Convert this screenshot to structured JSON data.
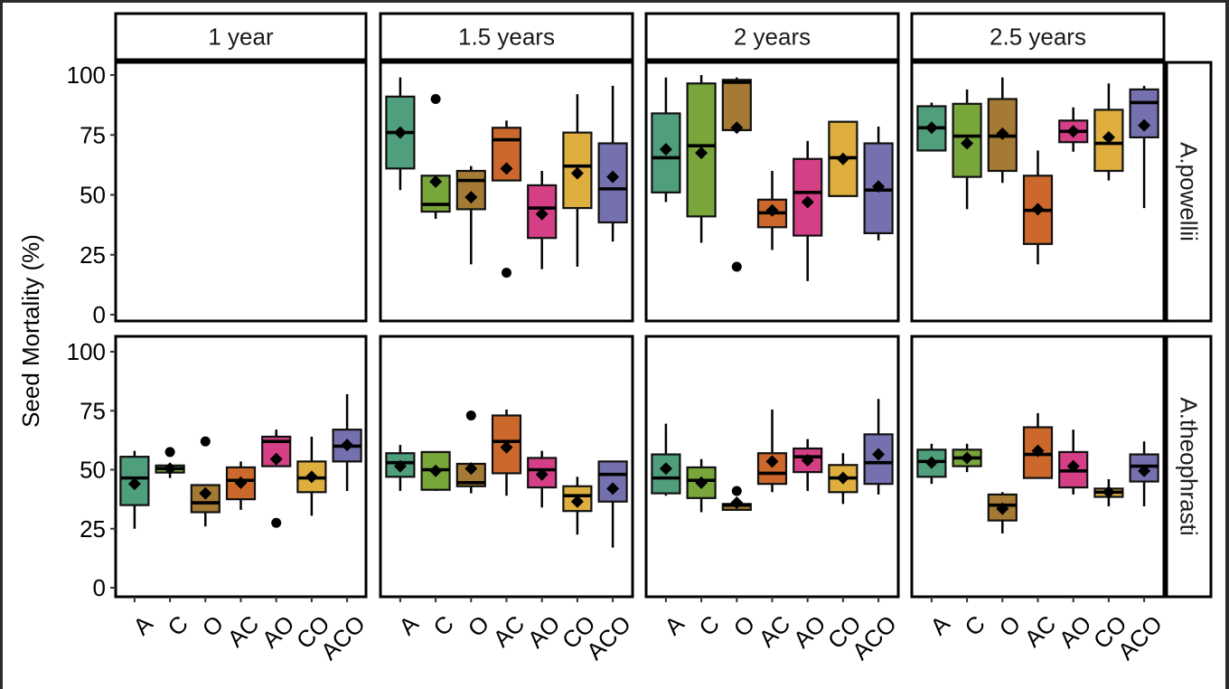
{
  "chart_data": {
    "type": "boxplot",
    "title": "",
    "ylabel": "Seed Mortality (%)",
    "xlabel": "",
    "ylim": [
      0,
      100
    ],
    "yticks": [
      0,
      25,
      50,
      75,
      100
    ],
    "grid": false,
    "legend": "none",
    "categories": [
      "A",
      "C",
      "O",
      "AC",
      "AO",
      "CO",
      "ACO"
    ],
    "colors": {
      "A": "#4f9e7c",
      "C": "#78a63a",
      "O": "#a47a34",
      "AC": "#cc682b",
      "AO": "#d53f86",
      "CO": "#deae3e",
      "ACO": "#7571af"
    },
    "columns": [
      "1 year",
      "1.5 years",
      "2 years",
      "2.5 years"
    ],
    "rows": [
      "A.powellii",
      "A.theophrasti"
    ],
    "panels": [
      {
        "row": "A.powellii",
        "column": "1 year",
        "boxes": []
      },
      {
        "row": "A.powellii",
        "column": "1.5 years",
        "boxes": [
          {
            "cat": "A",
            "lo": 52,
            "q1": 61,
            "med": 76,
            "q3": 91,
            "hi": 99,
            "mean": 76,
            "outliers": []
          },
          {
            "cat": "C",
            "lo": 40,
            "q1": 43,
            "med": 46,
            "q3": 58,
            "hi": 58,
            "mean": 55.5,
            "outliers": [
              90
            ]
          },
          {
            "cat": "O",
            "lo": 21,
            "q1": 44,
            "med": 56,
            "q3": 60,
            "hi": 62,
            "mean": 49,
            "outliers": []
          },
          {
            "cat": "AC",
            "lo": 56,
            "q1": 56,
            "med": 73,
            "q3": 78,
            "hi": 81,
            "mean": 61,
            "outliers": [
              17.5
            ]
          },
          {
            "cat": "AO",
            "lo": 19,
            "q1": 32,
            "med": 44.5,
            "q3": 54,
            "hi": 60,
            "mean": 42,
            "outliers": []
          },
          {
            "cat": "CO",
            "lo": 20,
            "q1": 44.5,
            "med": 62,
            "q3": 76,
            "hi": 92,
            "mean": 59,
            "outliers": []
          },
          {
            "cat": "ACO",
            "lo": 30.5,
            "q1": 38.5,
            "med": 52.5,
            "q3": 71.5,
            "hi": 95.5,
            "mean": 57.5,
            "outliers": []
          }
        ]
      },
      {
        "row": "A.powellii",
        "column": "2 years",
        "boxes": [
          {
            "cat": "A",
            "lo": 47,
            "q1": 51,
            "med": 65.5,
            "q3": 84,
            "hi": 99,
            "mean": 69,
            "outliers": []
          },
          {
            "cat": "C",
            "lo": 30,
            "q1": 41,
            "med": 70.5,
            "q3": 96.5,
            "hi": 100,
            "mean": 67.5,
            "outliers": []
          },
          {
            "cat": "O",
            "lo": 77,
            "q1": 77,
            "med": 97,
            "q3": 98,
            "hi": 99,
            "mean": 78,
            "outliers": [
              20
            ]
          },
          {
            "cat": "AC",
            "lo": 27,
            "q1": 36.5,
            "med": 42.5,
            "q3": 48,
            "hi": 60,
            "mean": 43.5,
            "outliers": []
          },
          {
            "cat": "AO",
            "lo": 14,
            "q1": 33,
            "med": 51,
            "q3": 65,
            "hi": 72.5,
            "mean": 47,
            "outliers": []
          },
          {
            "cat": "CO",
            "lo": 49.5,
            "q1": 49.5,
            "med": 65.5,
            "q3": 80.5,
            "hi": 80.5,
            "mean": 65,
            "outliers": []
          },
          {
            "cat": "ACO",
            "lo": 31,
            "q1": 34,
            "med": 52,
            "q3": 71.5,
            "hi": 78.5,
            "mean": 53.5,
            "outliers": []
          }
        ]
      },
      {
        "row": "A.powellii",
        "column": "2.5 years",
        "boxes": [
          {
            "cat": "A",
            "lo": 68.5,
            "q1": 68.5,
            "med": 78,
            "q3": 87,
            "hi": 88.5,
            "mean": 78,
            "outliers": []
          },
          {
            "cat": "C",
            "lo": 44,
            "q1": 57.5,
            "med": 74.5,
            "q3": 88,
            "hi": 94,
            "mean": 71.5,
            "outliers": []
          },
          {
            "cat": "O",
            "lo": 55,
            "q1": 60,
            "med": 74.5,
            "q3": 90,
            "hi": 99,
            "mean": 75.5,
            "outliers": []
          },
          {
            "cat": "AC",
            "lo": 21,
            "q1": 29.5,
            "med": 43.5,
            "q3": 58,
            "hi": 68.5,
            "mean": 44,
            "outliers": []
          },
          {
            "cat": "AO",
            "lo": 68,
            "q1": 72,
            "med": 76.5,
            "q3": 81,
            "hi": 86.5,
            "mean": 76.5,
            "outliers": []
          },
          {
            "cat": "CO",
            "lo": 56,
            "q1": 60,
            "med": 71.5,
            "q3": 85.5,
            "hi": 96.5,
            "mean": 74,
            "outliers": []
          },
          {
            "cat": "ACO",
            "lo": 44.5,
            "q1": 74,
            "med": 88.5,
            "q3": 94,
            "hi": 95.5,
            "mean": 79,
            "outliers": []
          }
        ]
      },
      {
        "row": "A.theophrasti",
        "column": "1 year",
        "boxes": [
          {
            "cat": "A",
            "lo": 25,
            "q1": 35,
            "med": 46.5,
            "q3": 55.5,
            "hi": 58,
            "mean": 44,
            "outliers": []
          },
          {
            "cat": "C",
            "lo": 46.5,
            "q1": 48.8,
            "med": 50.5,
            "q3": 51.8,
            "hi": 52.5,
            "mean": 50.5,
            "outliers": [
              57.5
            ]
          },
          {
            "cat": "O",
            "lo": 26,
            "q1": 32,
            "med": 36,
            "q3": 43.5,
            "hi": 43.5,
            "mean": 40,
            "outliers": [
              62
            ]
          },
          {
            "cat": "AC",
            "lo": 33,
            "q1": 37.5,
            "med": 45.5,
            "q3": 51,
            "hi": 53.5,
            "mean": 44.5,
            "outliers": []
          },
          {
            "cat": "AO",
            "lo": 51.5,
            "q1": 51.5,
            "med": 62,
            "q3": 64,
            "hi": 67,
            "mean": 54.5,
            "outliers": [
              27.5
            ]
          },
          {
            "cat": "CO",
            "lo": 30.5,
            "q1": 40.5,
            "med": 46.5,
            "q3": 53.5,
            "hi": 64,
            "mean": 47,
            "outliers": []
          },
          {
            "cat": "ACO",
            "lo": 41,
            "q1": 53.5,
            "med": 60,
            "q3": 67,
            "hi": 82,
            "mean": 60.5,
            "outliers": []
          }
        ]
      },
      {
        "row": "A.theophrasti",
        "column": "1.5 years",
        "boxes": [
          {
            "cat": "A",
            "lo": 41,
            "q1": 47,
            "med": 53,
            "q3": 57,
            "hi": 60.5,
            "mean": 51.5,
            "outliers": []
          },
          {
            "cat": "C",
            "lo": 41,
            "q1": 41.5,
            "med": 50,
            "q3": 57.5,
            "hi": 57.5,
            "mean": 49.5,
            "outliers": []
          },
          {
            "cat": "O",
            "lo": 40,
            "q1": 43,
            "med": 44.5,
            "q3": 52.5,
            "hi": 53,
            "mean": 50.5,
            "outliers": [
              73
            ]
          },
          {
            "cat": "AC",
            "lo": 39,
            "q1": 48.5,
            "med": 62,
            "q3": 73,
            "hi": 75.5,
            "mean": 59.5,
            "outliers": []
          },
          {
            "cat": "AO",
            "lo": 34,
            "q1": 42.5,
            "med": 50,
            "q3": 55,
            "hi": 58,
            "mean": 48,
            "outliers": []
          },
          {
            "cat": "CO",
            "lo": 22.5,
            "q1": 32.5,
            "med": 39,
            "q3": 43,
            "hi": 47,
            "mean": 36.5,
            "outliers": []
          },
          {
            "cat": "ACO",
            "lo": 17,
            "q1": 36.5,
            "med": 48,
            "q3": 53.5,
            "hi": 53.5,
            "mean": 42,
            "outliers": []
          }
        ]
      },
      {
        "row": "A.theophrasti",
        "column": "2 years",
        "boxes": [
          {
            "cat": "A",
            "lo": 39,
            "q1": 40,
            "med": 46.5,
            "q3": 56.5,
            "hi": 69.5,
            "mean": 50.5,
            "outliers": []
          },
          {
            "cat": "C",
            "lo": 32,
            "q1": 38,
            "med": 45.5,
            "q3": 51,
            "hi": 54.5,
            "mean": 44.5,
            "outliers": []
          },
          {
            "cat": "O",
            "lo": 33,
            "q1": 33,
            "med": 35,
            "q3": 35.5,
            "hi": 35.5,
            "mean": 36,
            "outliers": [
              41
            ]
          },
          {
            "cat": "AC",
            "lo": 40.5,
            "q1": 44,
            "med": 48.5,
            "q3": 57,
            "hi": 75.5,
            "mean": 53.5,
            "outliers": []
          },
          {
            "cat": "AO",
            "lo": 41,
            "q1": 49,
            "med": 55.5,
            "q3": 59,
            "hi": 63,
            "mean": 54,
            "outliers": []
          },
          {
            "cat": "CO",
            "lo": 35.5,
            "q1": 40.5,
            "med": 46.5,
            "q3": 52,
            "hi": 57,
            "mean": 46.5,
            "outliers": []
          },
          {
            "cat": "ACO",
            "lo": 39.5,
            "q1": 44,
            "med": 53,
            "q3": 65,
            "hi": 80,
            "mean": 56.5,
            "outliers": []
          }
        ]
      },
      {
        "row": "A.theophrasti",
        "column": "2.5 years",
        "boxes": [
          {
            "cat": "A",
            "lo": 44,
            "q1": 47,
            "med": 53.5,
            "q3": 58.5,
            "hi": 61,
            "mean": 53,
            "outliers": []
          },
          {
            "cat": "C",
            "lo": 49,
            "q1": 51.5,
            "med": 55,
            "q3": 58.5,
            "hi": 61,
            "mean": 55,
            "outliers": []
          },
          {
            "cat": "O",
            "lo": 23,
            "q1": 28.5,
            "med": 35,
            "q3": 39.5,
            "hi": 40.5,
            "mean": 33.5,
            "outliers": []
          },
          {
            "cat": "AC",
            "lo": 46.5,
            "q1": 46.5,
            "med": 56.5,
            "q3": 68,
            "hi": 74,
            "mean": 58,
            "outliers": []
          },
          {
            "cat": "AO",
            "lo": 39.5,
            "q1": 42.5,
            "med": 49.5,
            "q3": 57.5,
            "hi": 67,
            "mean": 51.5,
            "outliers": []
          },
          {
            "cat": "CO",
            "lo": 34.5,
            "q1": 38.5,
            "med": 40.5,
            "q3": 42,
            "hi": 46,
            "mean": 40.5,
            "outliers": []
          },
          {
            "cat": "ACO",
            "lo": 34.5,
            "q1": 45,
            "med": 51.5,
            "q3": 56.5,
            "hi": 62,
            "mean": 49.5,
            "outliers": []
          }
        ]
      }
    ]
  }
}
